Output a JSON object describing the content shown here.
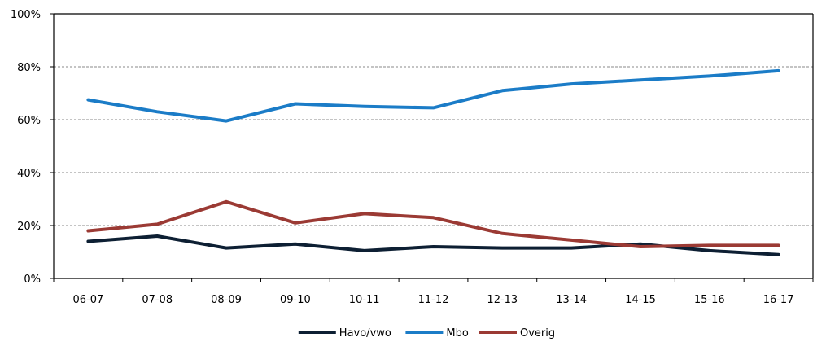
{
  "chart_data": {
    "type": "line",
    "title": "",
    "xlabel": "",
    "ylabel": "",
    "categories": [
      "06-07",
      "07-08",
      "08-09",
      "09-10",
      "10-11",
      "11-12",
      "12-13",
      "13-14",
      "14-15",
      "15-16",
      "16-17"
    ],
    "y_ticks": [
      "0%",
      "20%",
      "40%",
      "60%",
      "80%",
      "100%"
    ],
    "ylim": [
      0,
      100
    ],
    "y_unit": "%",
    "grid": "horizontal-dashed",
    "legend_position": "bottom",
    "series": [
      {
        "name": "Havo/vwo",
        "color": "#0d1f33",
        "values": [
          14,
          16,
          11.5,
          13,
          10.5,
          12,
          11.5,
          11.5,
          13,
          10.5,
          9
        ]
      },
      {
        "name": "Mbo",
        "color": "#1b7cc7",
        "values": [
          67.5,
          63,
          59.5,
          66,
          65,
          64.5,
          71,
          73.5,
          75,
          76.5,
          78.5
        ]
      },
      {
        "name": "Overig",
        "color": "#9b3a34",
        "values": [
          18,
          20.5,
          29,
          21,
          24.5,
          23,
          17,
          14.5,
          12,
          12.5,
          12.5
        ]
      }
    ]
  }
}
